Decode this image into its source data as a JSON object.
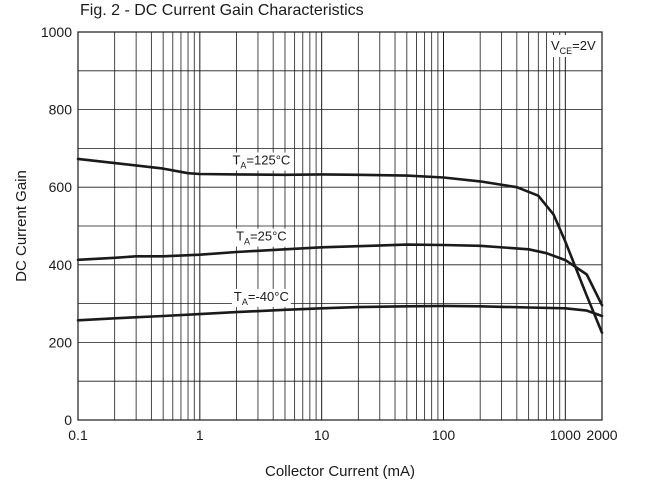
{
  "chart_data": {
    "type": "line",
    "title": "Fig. 2 - DC Current Gain Characteristics",
    "xlabel": "Collector Current (mA)",
    "ylabel": "DC Current Gain",
    "x_scale": "log",
    "xlim": [
      0.1,
      2000
    ],
    "ylim": [
      0,
      1000
    ],
    "grid": true,
    "x_tick_labels": [
      "0.1",
      "1",
      "10",
      "100",
      "1000",
      "2000"
    ],
    "y_tick_labels": [
      "0",
      "200",
      "400",
      "600",
      "800",
      "1000"
    ],
    "condition": {
      "main": "V",
      "sub": "CE",
      "rest": "=2V"
    },
    "series": [
      {
        "label": {
          "main": "T",
          "sub": "A",
          "rest": "=125°C"
        },
        "x": [
          0.1,
          0.2,
          0.5,
          0.8,
          1,
          2,
          5,
          10,
          20,
          50,
          100,
          200,
          400,
          600,
          800,
          1000,
          1500,
          2000
        ],
        "y": [
          673,
          662,
          648,
          636,
          634,
          633,
          632,
          633,
          632,
          630,
          625,
          615,
          600,
          578,
          530,
          460,
          320,
          225
        ]
      },
      {
        "label": {
          "main": "T",
          "sub": "A",
          "rest": "=25°C"
        },
        "x": [
          0.1,
          0.2,
          0.3,
          0.5,
          1,
          2,
          5,
          10,
          20,
          50,
          100,
          200,
          500,
          700,
          1000,
          1500,
          2000
        ],
        "y": [
          413,
          418,
          422,
          422,
          426,
          433,
          440,
          445,
          448,
          452,
          451,
          449,
          440,
          430,
          412,
          375,
          296
        ]
      },
      {
        "label": {
          "main": "T",
          "sub": "A",
          "rest": "=-40°C"
        },
        "x": [
          0.1,
          0.2,
          0.5,
          1,
          2,
          5,
          10,
          20,
          50,
          100,
          200,
          500,
          1000,
          1500,
          2000
        ],
        "y": [
          257,
          262,
          268,
          273,
          278,
          284,
          288,
          291,
          293,
          294,
          293,
          290,
          288,
          282,
          268
        ]
      }
    ]
  }
}
